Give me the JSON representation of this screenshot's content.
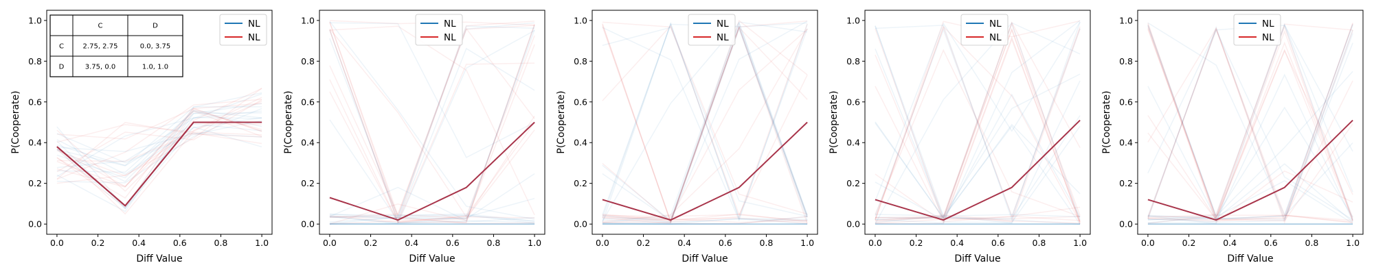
{
  "figure": {
    "colors": {
      "blue": "#1f77b4",
      "red": "#d62728",
      "dark": "#a8344a"
    },
    "payoff_table": {
      "header": [
        "",
        "C",
        "D"
      ],
      "rows": [
        [
          "C",
          "2.75, 2.75",
          "0.0, 3.75"
        ],
        [
          "D",
          "3.75, 0.0",
          "1.0, 1.0"
        ]
      ]
    }
  },
  "chart_data": [
    {
      "type": "line",
      "xlabel": "Diff Value",
      "ylabel": "P(Cooperate)",
      "xlim": [
        -0.05,
        1.05
      ],
      "ylim": [
        -0.05,
        1.05
      ],
      "xticks": [
        "0.0",
        "0.2",
        "0.4",
        "0.6",
        "0.8",
        "1.0"
      ],
      "yticks": [
        "0.0",
        "0.2",
        "0.4",
        "0.6",
        "0.8",
        "1.0"
      ],
      "grid": false,
      "legend_position": "top-right",
      "x": [
        0.0,
        0.333,
        0.667,
        1.0
      ],
      "series": [
        {
          "name": "NL",
          "color": "#1f77b4",
          "values": [
            0.38,
            0.09,
            0.5,
            0.5
          ]
        },
        {
          "name": "NL",
          "color": "#d62728",
          "values": [
            0.38,
            0.09,
            0.5,
            0.5
          ]
        }
      ]
    },
    {
      "type": "line",
      "xlabel": "Diff Value",
      "ylabel": "P(Cooperate)",
      "xlim": [
        -0.05,
        1.05
      ],
      "ylim": [
        -0.05,
        1.05
      ],
      "xticks": [
        "0.0",
        "0.2",
        "0.4",
        "0.6",
        "0.8",
        "1.0"
      ],
      "yticks": [
        "0.0",
        "0.2",
        "0.4",
        "0.6",
        "0.8",
        "1.0"
      ],
      "grid": false,
      "legend_position": "top-center",
      "x": [
        0.0,
        0.333,
        0.667,
        1.0
      ],
      "series": [
        {
          "name": "NL",
          "color": "#1f77b4",
          "values": [
            0.0,
            0.0,
            0.0,
            0.0
          ]
        },
        {
          "name": "NL",
          "color": "#d62728",
          "values": [
            0.13,
            0.02,
            0.18,
            0.5
          ]
        }
      ]
    },
    {
      "type": "line",
      "xlabel": "Diff Value",
      "ylabel": "P(Cooperate)",
      "xlim": [
        -0.05,
        1.05
      ],
      "ylim": [
        -0.05,
        1.05
      ],
      "xticks": [
        "0.0",
        "0.2",
        "0.4",
        "0.6",
        "0.8",
        "1.0"
      ],
      "yticks": [
        "0.0",
        "0.2",
        "0.4",
        "0.6",
        "0.8",
        "1.0"
      ],
      "grid": false,
      "legend_position": "top-center",
      "x": [
        0.0,
        0.333,
        0.667,
        1.0
      ],
      "series": [
        {
          "name": "NL",
          "color": "#1f77b4",
          "values": [
            0.0,
            0.0,
            0.0,
            0.0
          ]
        },
        {
          "name": "NL",
          "color": "#d62728",
          "values": [
            0.12,
            0.02,
            0.18,
            0.5
          ]
        }
      ]
    },
    {
      "type": "line",
      "xlabel": "Diff Value",
      "ylabel": "P(Cooperate)",
      "xlim": [
        -0.05,
        1.05
      ],
      "ylim": [
        -0.05,
        1.05
      ],
      "xticks": [
        "0.0",
        "0.2",
        "0.4",
        "0.6",
        "0.8",
        "1.0"
      ],
      "yticks": [
        "0.0",
        "0.2",
        "0.4",
        "0.6",
        "0.8",
        "1.0"
      ],
      "grid": false,
      "legend_position": "top-center",
      "x": [
        0.0,
        0.333,
        0.667,
        1.0
      ],
      "series": [
        {
          "name": "NL",
          "color": "#1f77b4",
          "values": [
            0.0,
            0.0,
            0.0,
            0.0
          ]
        },
        {
          "name": "NL",
          "color": "#d62728",
          "values": [
            0.12,
            0.02,
            0.18,
            0.51
          ]
        }
      ]
    },
    {
      "type": "line",
      "xlabel": "Diff Value",
      "ylabel": "P(Cooperate)",
      "xlim": [
        -0.05,
        1.05
      ],
      "ylim": [
        -0.05,
        1.05
      ],
      "xticks": [
        "0.0",
        "0.2",
        "0.4",
        "0.6",
        "0.8",
        "1.0"
      ],
      "yticks": [
        "0.0",
        "0.2",
        "0.4",
        "0.6",
        "0.8",
        "1.0"
      ],
      "grid": false,
      "legend_position": "top-center",
      "x": [
        0.0,
        0.333,
        0.667,
        1.0
      ],
      "series": [
        {
          "name": "NL",
          "color": "#1f77b4",
          "values": [
            0.0,
            0.0,
            0.0,
            0.0
          ]
        },
        {
          "name": "NL",
          "color": "#d62728",
          "values": [
            0.12,
            0.02,
            0.18,
            0.51
          ]
        }
      ]
    }
  ]
}
